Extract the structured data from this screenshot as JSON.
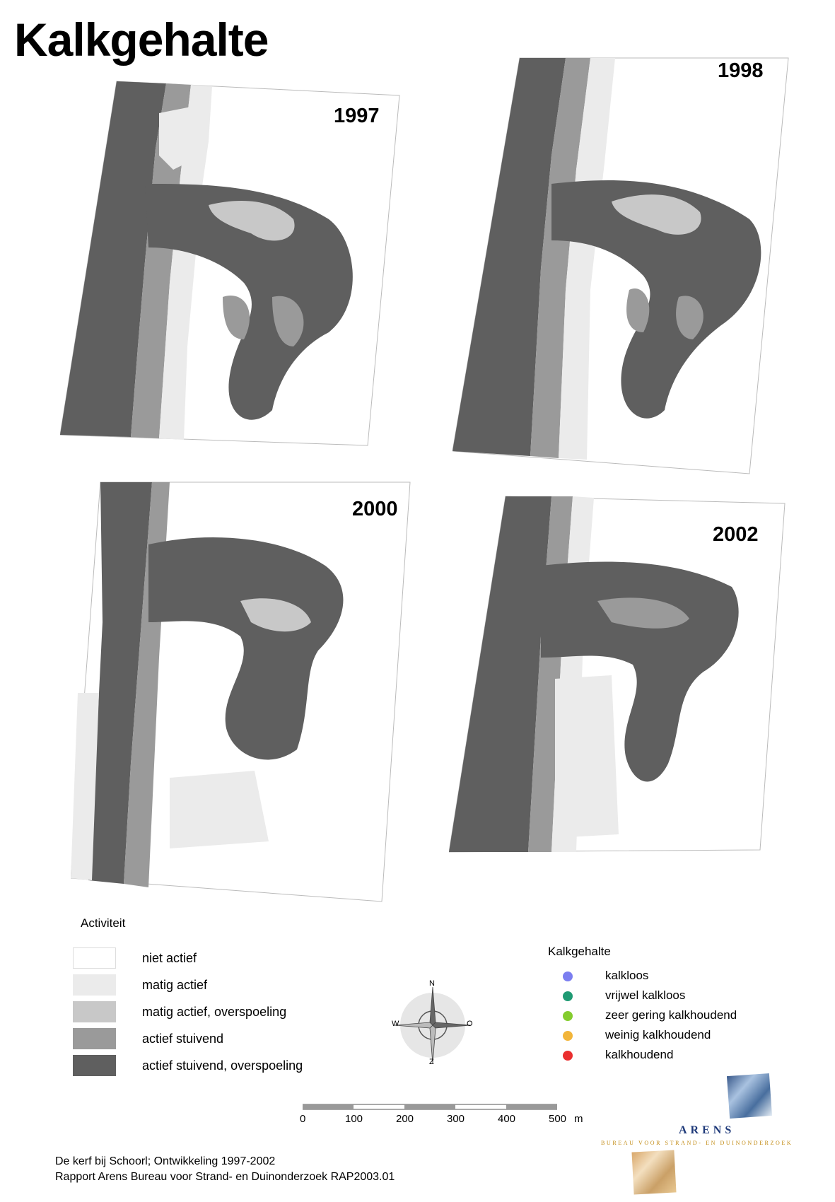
{
  "title": "Kalkgehalte",
  "maps": [
    {
      "year": "1997"
    },
    {
      "year": "1998"
    },
    {
      "year": "2000"
    },
    {
      "year": "2002"
    }
  ],
  "activity_legend": {
    "title": "Activiteit",
    "items": [
      {
        "label": "niet actief",
        "color": "#ffffff"
      },
      {
        "label": "matig actief",
        "color": "#ebebeb"
      },
      {
        "label": "matig actief, overspoeling",
        "color": "#c8c8c8"
      },
      {
        "label": "actief stuivend",
        "color": "#9a9a9a"
      },
      {
        "label": "actief stuivend, overspoeling",
        "color": "#5f5f5f"
      }
    ]
  },
  "lime_legend": {
    "title": "Kalkgehalte",
    "items": [
      {
        "label": "kalkloos",
        "color": "#7b7ef0"
      },
      {
        "label": "vrijwel kalkloos",
        "color": "#1f9a73"
      },
      {
        "label": "zeer gering kalkhoudend",
        "color": "#84cc2e"
      },
      {
        "label": "weinig kalkhoudend",
        "color": "#f2b53a"
      },
      {
        "label": "kalkhoudend",
        "color": "#ea2f2f"
      }
    ]
  },
  "compass": {
    "n": "N",
    "o": "O",
    "z": "Z",
    "w": "W"
  },
  "scale": {
    "ticks": [
      "0",
      "100",
      "200",
      "300",
      "400",
      "500"
    ],
    "unit": "m"
  },
  "footer": {
    "line1": "De kerf bij Schoorl; Ontwikkeling 1997-2002",
    "line2": "Rapport Arens Bureau voor Strand- en Duinonderzoek RAP2003.01"
  },
  "logo": {
    "name": "ARENS",
    "subtitle": "BUREAU VOOR STRAND- EN DUINONDERZOEK"
  }
}
